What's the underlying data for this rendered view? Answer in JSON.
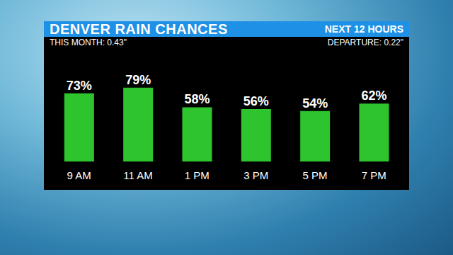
{
  "chart_data": {
    "type": "bar",
    "title": "DENVER RAIN CHANCES",
    "subtitle": "NEXT 12 HOURS",
    "annotations": [
      "THIS MONTH: 0.43\"",
      "DEPARTURE: 0.22\""
    ],
    "categories": [
      "9 AM",
      "11 AM",
      "1 PM",
      "3 PM",
      "5 PM",
      "7 PM"
    ],
    "values": [
      73,
      79,
      58,
      56,
      54,
      62
    ],
    "value_labels": [
      "73%",
      "79%",
      "58%",
      "56%",
      "54%",
      "62%"
    ],
    "color": "#2ec42e",
    "ylim": [
      0,
      100
    ],
    "data_labels": true,
    "tick_labels": "x",
    "grid": false
  }
}
